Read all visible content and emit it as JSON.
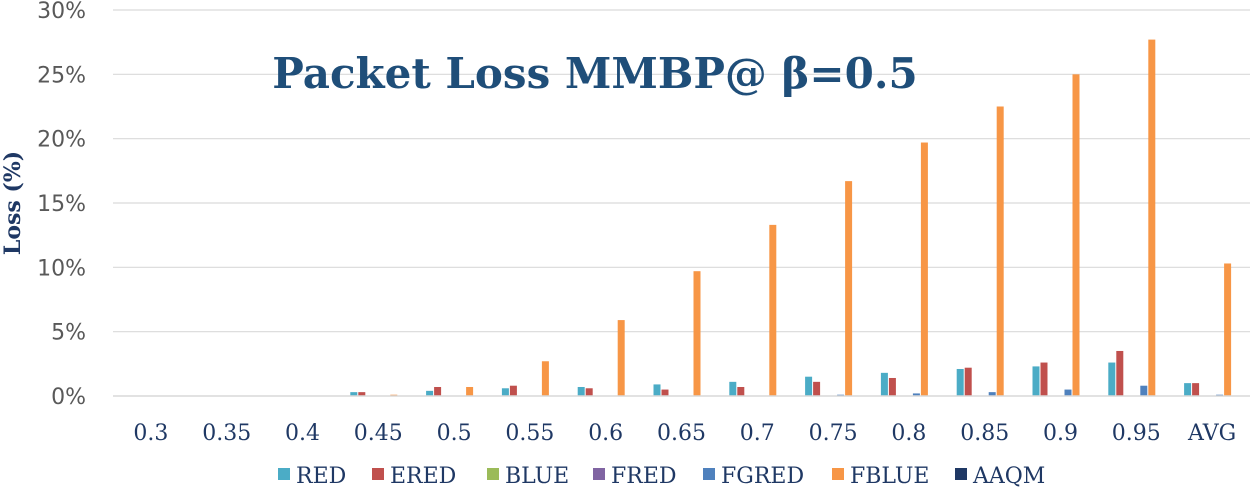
{
  "chart_data": {
    "type": "bar",
    "title": "Packet Loss MMBP@ β=0.5",
    "ylabel": "Loss (%)",
    "xlabel": "",
    "ylim": [
      0,
      30
    ],
    "yticks": [
      "0%",
      "5%",
      "10%",
      "15%",
      "20%",
      "25%",
      "30%"
    ],
    "categories": [
      "0.3",
      "0.35",
      "0.4",
      "0.45",
      "0.5",
      "0.55",
      "0.6",
      "0.65",
      "0.7",
      "0.75",
      "0.8",
      "0.85",
      "0.9",
      "0.95",
      "AVG"
    ],
    "series": [
      {
        "name": "RED",
        "color": "#4bacc6",
        "values": [
          0,
          0,
          0,
          0.3,
          0.4,
          0.6,
          0.7,
          0.9,
          1.1,
          1.5,
          1.8,
          2.1,
          2.3,
          2.6,
          1.0
        ]
      },
      {
        "name": "ERED",
        "color": "#c0504d",
        "values": [
          0,
          0,
          0,
          0.3,
          0.7,
          0.8,
          0.6,
          0.5,
          0.7,
          1.1,
          1.4,
          2.2,
          2.6,
          3.5,
          1.0
        ]
      },
      {
        "name": "BLUE",
        "color": "#9bbb59",
        "values": [
          0,
          0,
          0,
          0,
          0,
          0,
          0,
          0,
          0,
          0,
          0,
          0,
          0,
          0,
          0
        ]
      },
      {
        "name": "FRED",
        "color": "#8064a2",
        "values": [
          0,
          0,
          0,
          0,
          0,
          0,
          0,
          0,
          0,
          0,
          0,
          0,
          0,
          0,
          0
        ]
      },
      {
        "name": "FGRED",
        "color": "#4f81bd",
        "values": [
          0,
          0,
          0,
          0,
          0,
          0,
          0,
          0,
          0,
          0.1,
          0.2,
          0.3,
          0.5,
          0.8,
          0.1
        ]
      },
      {
        "name": "FBLUE",
        "color": "#f79646",
        "values": [
          0,
          0,
          0,
          0.1,
          0.7,
          2.7,
          5.9,
          9.7,
          13.3,
          16.7,
          19.7,
          22.5,
          25.0,
          27.7,
          10.3
        ]
      },
      {
        "name": "AAQM",
        "color": "#1f3864",
        "values": [
          0,
          0,
          0,
          0,
          0,
          0,
          0,
          0,
          0,
          0,
          0,
          0,
          0,
          0,
          0
        ]
      }
    ],
    "grid": true,
    "legend": "bottom"
  }
}
